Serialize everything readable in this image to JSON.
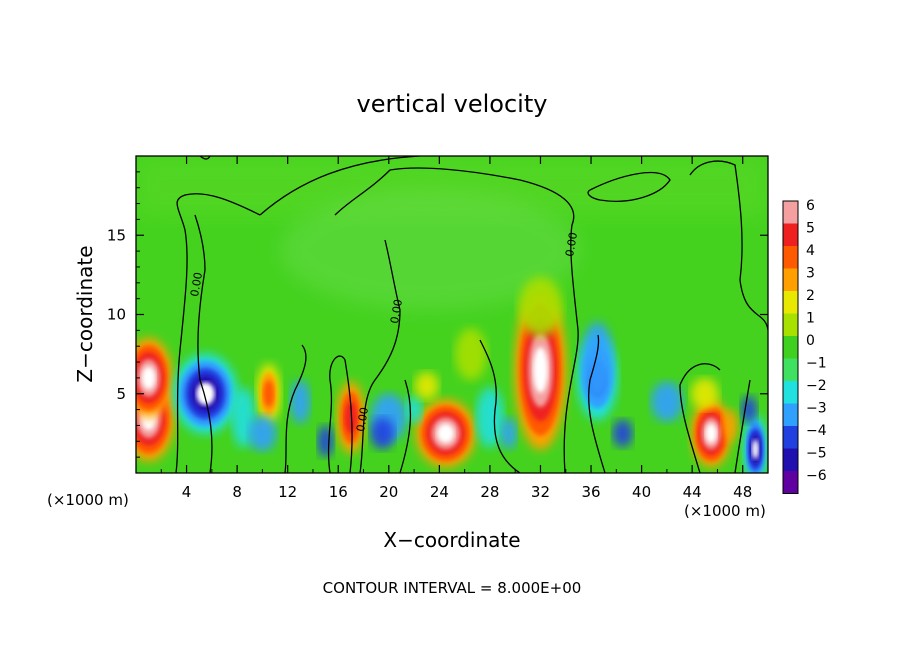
{
  "chart_data": {
    "type": "heatmap",
    "title": "vertical velocity",
    "xlabel": "X−coordinate",
    "ylabel": "Z−coordinate",
    "x_unit_left": "(×1000 m)",
    "x_unit_right": "(×1000 m)",
    "footer": "CONTOUR INTERVAL = 8.000E+00",
    "xlim": [
      0,
      50
    ],
    "ylim": [
      0,
      20
    ],
    "x_ticks": [
      "4",
      "8",
      "12",
      "16",
      "20",
      "24",
      "28",
      "32",
      "36",
      "40",
      "44",
      "48"
    ],
    "x_tick_values": [
      4,
      8,
      12,
      16,
      20,
      24,
      28,
      32,
      36,
      40,
      44,
      48
    ],
    "y_ticks": [
      "5",
      "10",
      "15"
    ],
    "y_tick_values": [
      5,
      10,
      15
    ],
    "colorbar": {
      "labels": [
        "6",
        "5",
        "4",
        "3",
        "2",
        "1",
        "0",
        "−1",
        "−2",
        "−3",
        "−4",
        "−5",
        "−6"
      ],
      "levels": [
        6,
        5,
        4,
        3,
        2,
        1,
        0,
        -1,
        -2,
        -3,
        -4,
        -5,
        -6
      ],
      "colors": [
        "#f4a0a0",
        "#ee2020",
        "#ff5a00",
        "#ffa000",
        "#e8e800",
        "#a8e000",
        "#40d020",
        "#40e060",
        "#20e0e0",
        "#30a0ff",
        "#2040e0",
        "#2010b0",
        "#6000a0"
      ]
    },
    "contour_label": "0.00",
    "contour_interval": 8.0,
    "field": [
      {
        "x": 1.0,
        "z": 3.5,
        "w": 6
      },
      {
        "x": 1.0,
        "z": 6.0,
        "w": 6
      },
      {
        "x": 5.5,
        "z": 5.0,
        "w": -5
      },
      {
        "x": 10.5,
        "z": 5.0,
        "w": 3
      },
      {
        "x": 17.0,
        "z": 3.5,
        "w": 4
      },
      {
        "x": 24.5,
        "z": 2.5,
        "w": 6
      },
      {
        "x": 32.0,
        "z": 6.5,
        "w": 6
      },
      {
        "x": 36.5,
        "z": 6.0,
        "w": -4
      },
      {
        "x": 45.5,
        "z": 2.5,
        "w": 6
      },
      {
        "x": 49.0,
        "z": 1.5,
        "w": -5
      }
    ]
  }
}
